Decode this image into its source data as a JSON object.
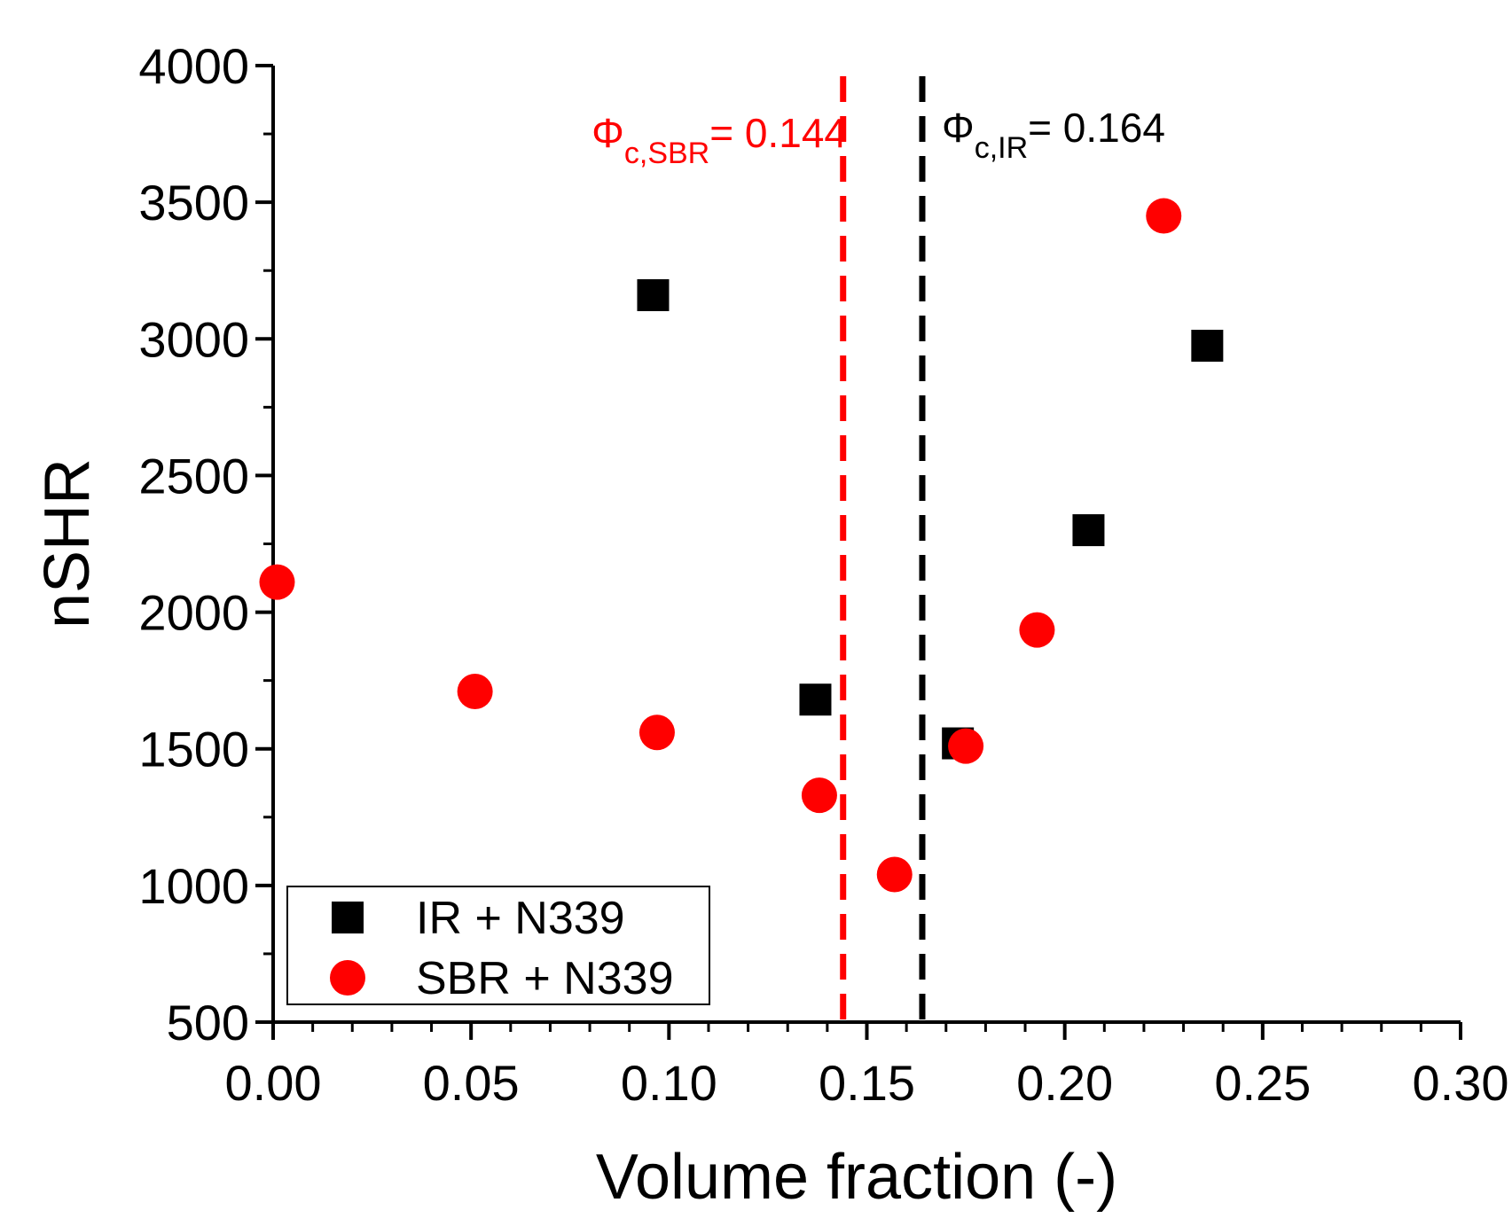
{
  "chart_data": {
    "type": "scatter",
    "xlabel": "Volume fraction (-)",
    "ylabel": "nSHR",
    "xlim": [
      0.0,
      0.3
    ],
    "ylim": [
      500,
      4000
    ],
    "x_ticks": [
      0.0,
      0.05,
      0.1,
      0.15,
      0.2,
      0.25,
      0.3
    ],
    "x_tick_labels": [
      "0.00",
      "0.05",
      "0.10",
      "0.15",
      "0.20",
      "0.25",
      "0.30"
    ],
    "y_ticks": [
      500,
      1000,
      1500,
      2000,
      2500,
      3000,
      3500,
      4000
    ],
    "y_tick_labels": [
      "500",
      "1000",
      "1500",
      "2000",
      "2500",
      "3000",
      "3500",
      "4000"
    ],
    "grid": false,
    "legend_position": "bottom-left",
    "series": [
      {
        "name": "IR + N339",
        "marker": "square",
        "color": "#000000",
        "x": [
          0.096,
          0.137,
          0.173,
          0.206,
          0.236
        ],
        "y": [
          3160,
          1680,
          1520,
          2300,
          2975
        ]
      },
      {
        "name": "SBR + N339",
        "marker": "circle",
        "color": "#ff0000",
        "x": [
          0.001,
          0.051,
          0.097,
          0.138,
          0.157,
          0.175,
          0.193,
          0.225
        ],
        "y": [
          2110,
          1710,
          1560,
          1330,
          1040,
          1510,
          1935,
          3450
        ]
      }
    ],
    "reference_lines": [
      {
        "x": 0.144,
        "color": "#ff0000",
        "style": "dashed",
        "label_symbol": "Φ",
        "label_subscript": "c,SBR",
        "label_value": "= 0.144"
      },
      {
        "x": 0.164,
        "color": "#000000",
        "style": "dashed",
        "label_symbol": "Φ",
        "label_subscript": "c,IR",
        "label_value": "= 0.164"
      }
    ]
  }
}
